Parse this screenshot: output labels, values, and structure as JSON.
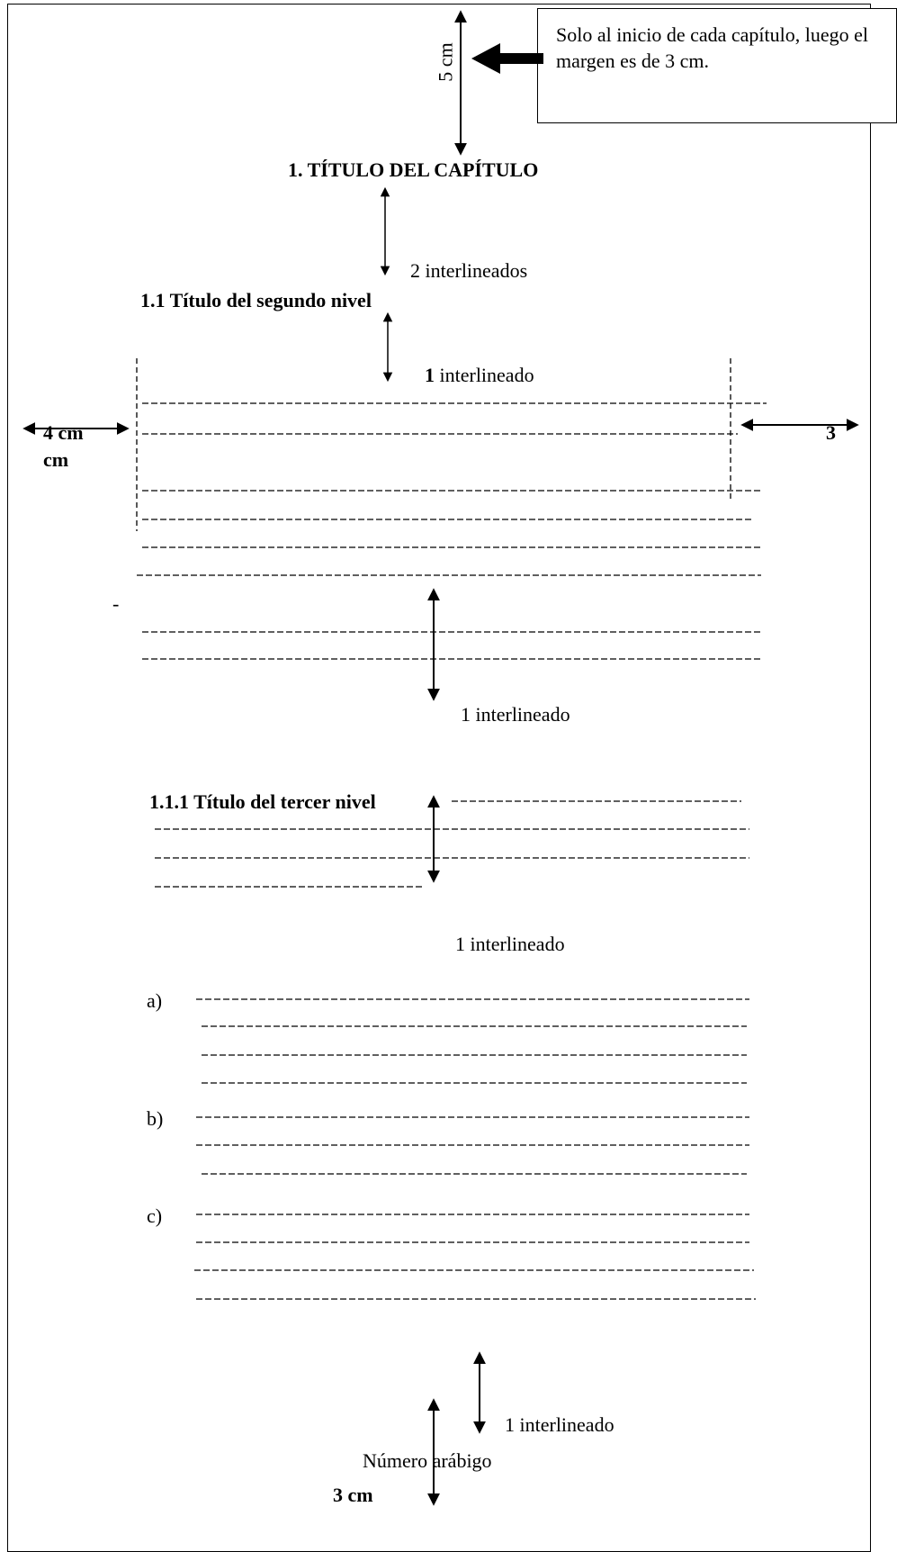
{
  "page": {
    "note": "Solo al inicio de cada capítulo, luego el margen es de 3 cm.",
    "top_margin_label": "5 cm",
    "chapter_title": "1. TÍTULO DEL CAPÍTULO",
    "spacing_two": "2  interlineados",
    "second_level_title": "1.1   Título del segundo nivel",
    "spacing_one_bold": "1",
    "spacing_one_rest": " interlineado",
    "left_margin_label_a": "4  cm",
    "left_margin_label_b": "cm",
    "right_margin_label": "3",
    "stray_mark": "-",
    "spacing_one_b": "1 interlineado",
    "third_level_title": "1.1.1  Título del tercer nivel",
    "spacing_one_c": "1 interlineado",
    "list_markers": [
      "a)",
      "b)",
      "c)"
    ],
    "spacing_one_d": "1 interlineado",
    "page_number_label": "Número arábigo",
    "bottom_margin_label": "3 cm"
  }
}
